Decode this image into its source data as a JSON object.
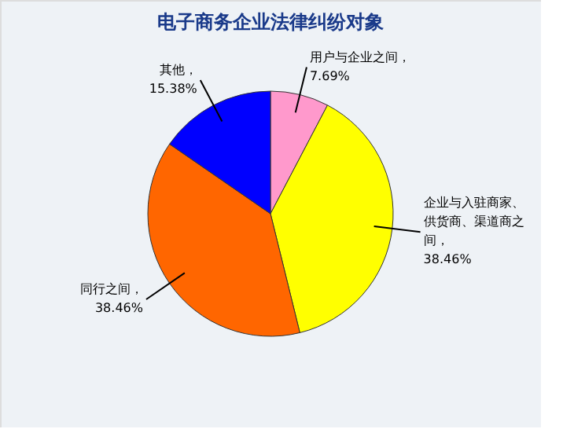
{
  "chart_data": {
    "type": "pie",
    "title": "电子商务企业法律纠纷对象",
    "categories": [
      "用户与企业之间",
      "企业与入驻商家、供货商、渠道商之间",
      "同行之间",
      "其他"
    ],
    "values": [
      7.69,
      38.46,
      38.46,
      15.38
    ],
    "value_labels": [
      "，7.69%",
      "，38.46%",
      "，38.46%",
      "，15.38%"
    ],
    "colors": [
      "#ff99cc",
      "#ffff00",
      "#ff6600",
      "#0000ff"
    ]
  }
}
